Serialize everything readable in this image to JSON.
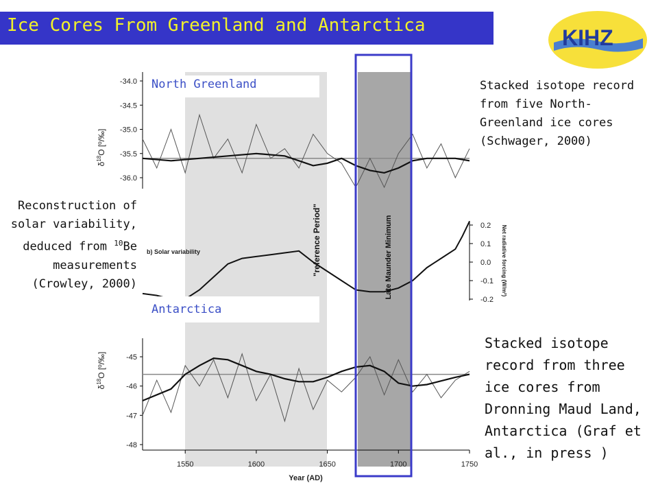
{
  "header": {
    "title": "Ice Cores From Greenland and Antarctica",
    "logo_text": "KIHZ",
    "bar_color": "#3535c8",
    "title_color": "#f2f22a"
  },
  "captions": {
    "north_greenland": "Stacked isotope record from five North-Greenland ice cores (Schwager, 2000)",
    "solar_pre": "Reconstruction of solar variability, deduced from ",
    "solar_sup": "10",
    "solar_post": "Be measurements (Crowley, 2000)",
    "antarctica": "Stacked isotope record from three ice cores from Dronning Maud Land, Antarctica (Graf et al., in press )"
  },
  "labels": {
    "north_greenland": "North Greenland",
    "antarctica": "Antarctica",
    "solar_panel": "b) Solar variability",
    "reference_period": "\"reference Period\"",
    "late_maunder": "Late Maunder Minimum",
    "ng_ylabel_pre": "δ",
    "ng_ylabel_sup": "18",
    "ng_ylabel_post": "O [º/‰]",
    "ant_ylabel_pre": "δ",
    "ant_ylabel_sup": "18",
    "ant_ylabel_post": "O [º/‰]",
    "solar_ylabel": "Net radiative forcing (W/m²)",
    "xlabel": "Year (AD)"
  },
  "chart_data": [
    {
      "type": "line",
      "panel": "north_greenland",
      "ylabel": "δ18O [‰]",
      "ylim": [
        -36.2,
        -34.0
      ],
      "yticks": [
        -34.0,
        -34.5,
        -35.0,
        -35.5,
        -36.0
      ],
      "ytick_labels": [
        "-34.0",
        "-34.5",
        "-35.0",
        "-35.5",
        "-36.0"
      ],
      "reference_line": -35.6,
      "series": [
        {
          "x": [
            1520,
            1530,
            1540,
            1550,
            1560,
            1570,
            1580,
            1590,
            1600,
            1610,
            1620,
            1630,
            1640,
            1650,
            1660,
            1670,
            1680,
            1690,
            1700,
            1710,
            1720,
            1730,
            1740,
            1750
          ],
          "values": [
            -35.2,
            -35.8,
            -35.0,
            -35.9,
            -34.7,
            -35.6,
            -35.2,
            -35.9,
            -34.9,
            -35.6,
            -35.4,
            -35.8,
            -35.1,
            -35.5,
            -35.7,
            -36.2,
            -35.6,
            -36.2,
            -35.5,
            -35.1,
            -35.8,
            -35.3,
            -36.0,
            -35.4
          ]
        },
        {
          "x": [
            1520,
            1540,
            1560,
            1580,
            1600,
            1620,
            1630,
            1640,
            1650,
            1660,
            1670,
            1680,
            1690,
            1700,
            1710,
            1720,
            1740,
            1750
          ],
          "values": [
            -35.6,
            -35.65,
            -35.6,
            -35.55,
            -35.5,
            -35.55,
            -35.65,
            -35.75,
            -35.7,
            -35.6,
            -35.75,
            -35.85,
            -35.9,
            -35.8,
            -35.65,
            -35.6,
            -35.6,
            -35.65
          ]
        }
      ]
    },
    {
      "type": "line",
      "panel": "solar_variability",
      "title": "b) Solar variability",
      "ylabel": "Net radiative forcing (W/m²)",
      "ylim": [
        -0.25,
        0.25
      ],
      "yticks": [
        0.2,
        0.1,
        0.0,
        -0.1,
        -0.2
      ],
      "ytick_labels": [
        "0.2",
        "0.1",
        "0.0",
        "-0.1",
        "-0.2"
      ],
      "series": [
        {
          "x": [
            1520,
            1530,
            1540,
            1550,
            1560,
            1570,
            1580,
            1590,
            1600,
            1610,
            1620,
            1630,
            1640,
            1650,
            1660,
            1670,
            1680,
            1690,
            1700,
            1710,
            1720,
            1730,
            1740,
            1745,
            1750
          ],
          "values": [
            -0.17,
            -0.18,
            -0.2,
            -0.2,
            -0.15,
            -0.08,
            -0.01,
            0.02,
            0.03,
            0.04,
            0.05,
            0.06,
            0.0,
            -0.05,
            -0.1,
            -0.15,
            -0.16,
            -0.16,
            -0.14,
            -0.1,
            -0.03,
            0.02,
            0.07,
            0.14,
            0.22
          ]
        }
      ]
    },
    {
      "type": "line",
      "panel": "antarctica",
      "ylabel": "δ18O [‰]",
      "ylim": [
        -48.2,
        -44.8
      ],
      "yticks": [
        -45,
        -46,
        -47,
        -48
      ],
      "ytick_labels": [
        "-45",
        "-46",
        "-47",
        "-48"
      ],
      "reference_line": -45.6,
      "xlabel": "Year (AD)",
      "xlim": [
        1520,
        1750
      ],
      "xticks": [
        1550,
        1600,
        1650,
        1700,
        1750
      ],
      "series": [
        {
          "x": [
            1520,
            1530,
            1540,
            1550,
            1560,
            1570,
            1580,
            1590,
            1600,
            1610,
            1620,
            1630,
            1640,
            1650,
            1660,
            1670,
            1680,
            1690,
            1700,
            1710,
            1720,
            1730,
            1740,
            1750
          ],
          "values": [
            -47.0,
            -45.8,
            -46.9,
            -45.3,
            -46.0,
            -45.1,
            -46.4,
            -44.9,
            -46.5,
            -45.6,
            -47.2,
            -45.4,
            -46.8,
            -45.8,
            -46.2,
            -45.7,
            -45.0,
            -46.3,
            -45.1,
            -46.2,
            -45.6,
            -46.4,
            -45.8,
            -45.5
          ]
        },
        {
          "x": [
            1520,
            1540,
            1550,
            1560,
            1570,
            1580,
            1590,
            1600,
            1610,
            1620,
            1630,
            1640,
            1650,
            1660,
            1670,
            1680,
            1690,
            1700,
            1710,
            1720,
            1740,
            1750
          ],
          "values": [
            -46.5,
            -46.1,
            -45.6,
            -45.3,
            -45.05,
            -45.1,
            -45.3,
            -45.5,
            -45.6,
            -45.75,
            -45.85,
            -45.85,
            -45.7,
            -45.5,
            -45.35,
            -45.3,
            -45.5,
            -45.9,
            -46.0,
            -45.95,
            -45.7,
            -45.6
          ]
        }
      ]
    }
  ],
  "shading": {
    "reference_period": [
      1550,
      1652
    ],
    "late_maunder_minimum": [
      1670,
      1709
    ]
  }
}
